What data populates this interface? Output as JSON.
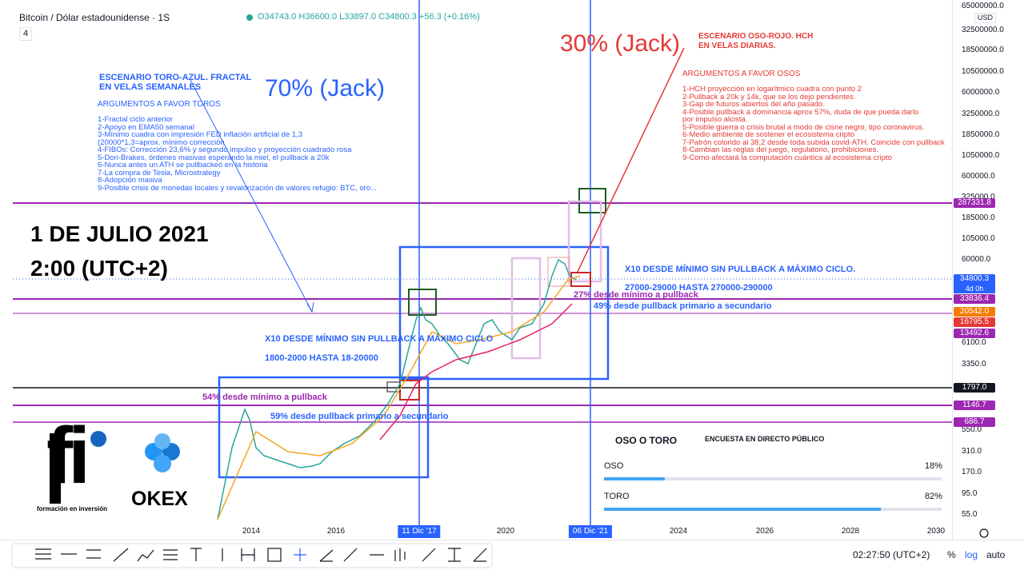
{
  "header": {
    "symbol": "Bitcoin / Dólar estadounidense · 1S",
    "count": "4",
    "open": "O34743.0",
    "high": "H36600.0",
    "low": "L33897.0",
    "close": "C34800.3",
    "change": "+56.3 (+0.16%)"
  },
  "toro": {
    "title": "ESCENARIO TORO-AZUL. FRACTAL EN VELAS SEMANALES",
    "probability": "70% (Jack)",
    "args_title": "ARGUMENTOS A FAVOR TOROS",
    "args": [
      "1-Fractal ciclo anterior",
      "2-Apoyo en EMA50 semanal",
      "3-Mínimo cuadra con impresión FED inflación artificial de 1,3",
      "(20000*1,3=aprox. mínimo corrección",
      "4-FIBOs: Corrección 23,6% y segundo impulso y proyección cuadrado rosa",
      "5-Dori-Brakes, órdenes masivas esperando la miel, el pullback a 20k",
      "6-Nunca antes un ATH se pullbackeó en la historia",
      "7-La compra de Tesla, Microstrategy",
      "8-Adopción masiva",
      "9-Posible crisis de monedas locales y revalorización de valores refugio: BTC, oro..."
    ]
  },
  "oso": {
    "probability": "30% (Jack)",
    "title": "ESCENARIO OSO-ROJO. HCH EN VELAS DIARIAS.",
    "args_title": "ARGUMENTOS A FAVOR OSOS",
    "args": [
      "1-HCH proyección en logarítmico cuadra con punto 2",
      "2-Pullback a 20k y 14k, que se los dejo pendientes.",
      "3-Gap de futuros abiertos del año pasado.",
      "4-Posible pullback a dominancia aprox 57%, duda de que pueda darlo",
      "por impulso alcista.",
      "5-Posible guerra o crisis brutal a modo de cisne negro, tipo coronavirus.",
      "6-Medio ambiente de sostener el ecosistema cripto",
      "7-Patrón colorido al 38,2 desde toda subida covid-ATH. Coincide con pullback",
      "8-Cambian las reglas del juego, regulatorio, prohibiciones.",
      "9-Como afectará la computación cuántica al ecosistema cripto"
    ]
  },
  "date": {
    "day": "1 DE JULIO 2021",
    "time": "2:00 (UTC+2)"
  },
  "notes": {
    "cycle2_title": "X10 DESDE MÍNIMO SIN PULLBACK A MÁXIMO CICLO.",
    "cycle2_range": "27000-29000 HASTA  270000-290000",
    "cycle2_pull1": "27% desde mínimo a pullback",
    "cycle2_pull2": "49% desde pullback primario a secundario",
    "cycle1_title": "X10 DESDE MÍNIMO SIN PULLBACK A MÁXIMO CICLO",
    "cycle1_range": "1800-2000 HASTA 18-20000",
    "cycle1_pull1": "54% desde mínimo a pullback",
    "cycle1_pull2": "59% desde pullback primario a secundario"
  },
  "poll": {
    "title": "OSO O TORO",
    "subtitle": "ENCUESTA EN DIRECTO PÚBLICO",
    "options": [
      {
        "name": "OSO",
        "value": 18,
        "label": "18%"
      },
      {
        "name": "TORO",
        "value": 82,
        "label": "82%"
      }
    ]
  },
  "logos": {
    "fi": "fi",
    "fi_caption": "formación en inversión",
    "okex": "OKEX"
  },
  "price_axis": {
    "currency": "USD",
    "labels": [
      "65000000.0",
      "32500000.0",
      "18500000.0",
      "10500000.0",
      "6000000.0",
      "3250000.0",
      "1850000.0",
      "1050000.0",
      "600000.0",
      "325000.0",
      "185000.0",
      "105000.0",
      "60000.0",
      "6100.0",
      "3350.0",
      "550.0",
      "310.0",
      "170.0",
      "95.0",
      "55.0"
    ]
  },
  "badges": [
    {
      "text": "287331.8",
      "color": "#9c27b0"
    },
    {
      "text": "34800.3",
      "sub": "4d 0h",
      "color": "#2962ff"
    },
    {
      "text": "33836.4",
      "color": "#9c27b0"
    },
    {
      "text": "20542.0",
      "color": "#f57c00"
    },
    {
      "text": "16795.5",
      "color": "#e53935"
    },
    {
      "text": "13492.6",
      "color": "#9c27b0"
    },
    {
      "text": "1797.0",
      "color": "#131722"
    },
    {
      "text": "1146.7",
      "color": "#9c27b0"
    },
    {
      "text": "686.7",
      "color": "#9c27b0"
    }
  ],
  "time_axis": [
    "2014",
    "2016",
    "11 Dic '17",
    "2020",
    "06 Dic '21",
    "2024",
    "2026",
    "2028",
    "2030"
  ],
  "footer": {
    "clock": "02:27:50 (UTC+2)",
    "percent": "%",
    "log": "log",
    "auto": "auto"
  }
}
